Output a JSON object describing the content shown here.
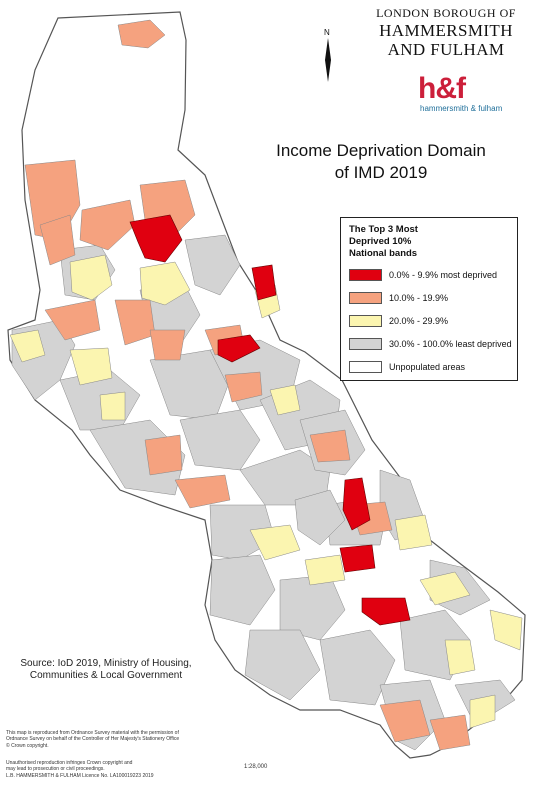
{
  "header": {
    "council_line1": "LONDON BOROUGH OF",
    "council_line2": "HAMMERSMITH",
    "council_line3": "AND FULHAM",
    "logo_text": "h&f",
    "logo_subtext": "hammersmith & fulham"
  },
  "map": {
    "title_line1": "Income Deprivation Domain",
    "title_line2": "of IMD 2019",
    "north_label": "N",
    "scale": "1:28,000"
  },
  "legend": {
    "title_line1": "The Top 3 Most",
    "title_line2": "Deprived 10%",
    "title_line3": "National bands",
    "items": [
      {
        "label": "0.0% - 9.9% most deprived",
        "color": "#e00010"
      },
      {
        "label": "10.0% - 19.9%",
        "color": "#f5a27f"
      },
      {
        "label": "20.0% - 29.9%",
        "color": "#fbf5b0"
      },
      {
        "label": "30.0% - 100.0% least deprived",
        "color": "#d3d3d3"
      },
      {
        "label": "Unpopulated areas",
        "color": "#ffffff"
      }
    ]
  },
  "footer": {
    "source_line1": "Source: IoD 2019, Ministry of Housing,",
    "source_line2": "Communities & Local Government",
    "fine1": "This map is reproduced from Ordnance Survey material with the permission of",
    "fine2": "Ordnance Survey on behalf of the Controller of Her Majesty's Stationery Office",
    "fine3": "© Crown copyright.",
    "fine4": "Unauthorised reproduction infringes Crown copyright and",
    "fine5": "may lead to prosecution or civil proceedings.",
    "fine6": "L.B. HAMMERSMITH & FULHAM Licence No. LA100019223 2019"
  }
}
